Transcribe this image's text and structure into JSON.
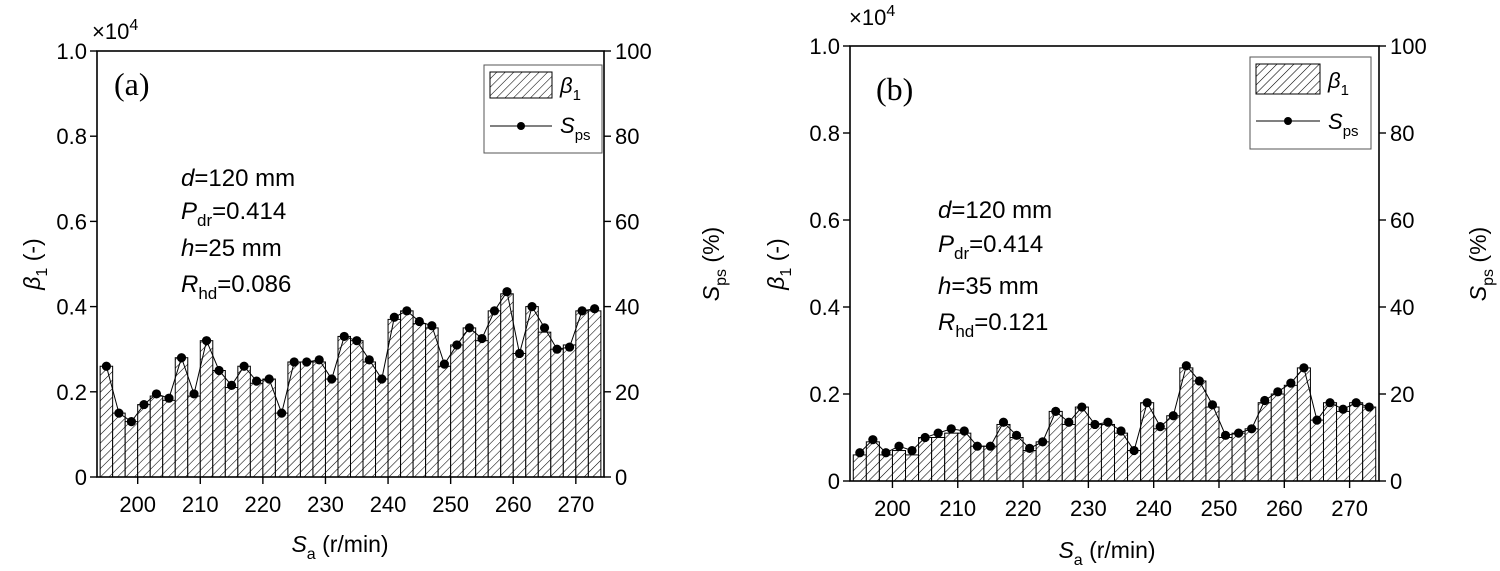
{
  "chart_data": [
    {
      "type": "bar+line",
      "panel_label": "(a)",
      "exponent_label": "×10",
      "exponent_power": "4",
      "ylabel_left": "β1 (-)",
      "ylabel_right": "Sps (%)",
      "xlabel": "Sa (r/min)",
      "x_ticks": [
        "200",
        "210",
        "220",
        "230",
        "240",
        "250",
        "260",
        "270"
      ],
      "y_left_ticks": [
        "0",
        "0.2",
        "0.4",
        "0.6",
        "0.8",
        "1.0"
      ],
      "y_right_ticks": [
        "0",
        "20",
        "40",
        "60",
        "80",
        "100"
      ],
      "ylim_left": [
        0,
        1.0
      ],
      "ylim_right": [
        0,
        100
      ],
      "xlim": [
        193.5,
        274.5
      ],
      "legend": [
        "β1",
        "Sps"
      ],
      "legend_position": "top-right",
      "annotations": [
        "d=120 mm",
        "Pdr=0.414",
        "h=25 mm",
        "Rhd=0.086"
      ],
      "x": [
        195,
        197,
        199,
        201,
        203,
        205,
        207,
        209,
        211,
        213,
        215,
        217,
        219,
        221,
        223,
        225,
        227,
        229,
        231,
        233,
        235,
        237,
        239,
        241,
        243,
        245,
        247,
        249,
        251,
        253,
        255,
        257,
        259,
        261,
        263,
        265,
        267,
        269,
        271,
        273
      ],
      "series": [
        {
          "name": "β1 (×10^4)",
          "values": [
            0.26,
            0.15,
            0.13,
            0.17,
            0.19,
            0.18,
            0.28,
            0.19,
            0.32,
            0.25,
            0.21,
            0.26,
            0.22,
            0.23,
            0.15,
            0.27,
            0.27,
            0.27,
            0.23,
            0.33,
            0.32,
            0.27,
            0.23,
            0.37,
            0.39,
            0.36,
            0.35,
            0.26,
            0.31,
            0.35,
            0.32,
            0.39,
            0.43,
            0.29,
            0.4,
            0.34,
            0.3,
            0.31,
            0.39,
            0.39
          ]
        },
        {
          "name": "Sps (%)",
          "values": [
            26,
            15,
            13,
            17,
            19.5,
            18.5,
            28,
            19.5,
            32,
            25,
            21.5,
            26,
            22.5,
            23,
            15,
            27,
            27,
            27.5,
            23,
            33,
            32,
            27.5,
            23,
            37.5,
            39,
            36.5,
            35.5,
            26.5,
            31,
            35,
            32.5,
            39,
            43.5,
            29,
            40,
            35,
            30,
            30.5,
            39,
            39.5
          ]
        }
      ]
    },
    {
      "type": "bar+line",
      "panel_label": "(b)",
      "exponent_label": "×10",
      "exponent_power": "4",
      "ylabel_left": "β1 (-)",
      "ylabel_right": "Sps (%)",
      "xlabel": "Sa (r/min)",
      "x_ticks": [
        "200",
        "210",
        "220",
        "230",
        "240",
        "250",
        "260",
        "270"
      ],
      "y_left_ticks": [
        "0",
        "0.2",
        "0.4",
        "0.6",
        "0.8",
        "1.0"
      ],
      "y_right_ticks": [
        "0",
        "20",
        "40",
        "60",
        "80",
        "100"
      ],
      "ylim_left": [
        0,
        1.0
      ],
      "ylim_right": [
        0,
        100
      ],
      "xlim": [
        193.5,
        274.5
      ],
      "legend": [
        "β1",
        "Sps"
      ],
      "legend_position": "top-right",
      "annotations": [
        "d=120 mm",
        "Pdr=0.414",
        "h=35 mm",
        "Rhd=0.121"
      ],
      "x": [
        195,
        197,
        199,
        201,
        203,
        205,
        207,
        209,
        211,
        213,
        215,
        217,
        219,
        221,
        223,
        225,
        227,
        229,
        231,
        233,
        235,
        237,
        239,
        241,
        243,
        245,
        247,
        249,
        251,
        253,
        255,
        257,
        259,
        261,
        263,
        265,
        267,
        269,
        271,
        273
      ],
      "series": [
        {
          "name": "β1 (×10^4)",
          "values": [
            0.06,
            0.09,
            0.06,
            0.07,
            0.06,
            0.1,
            0.1,
            0.11,
            0.11,
            0.08,
            0.08,
            0.13,
            0.1,
            0.07,
            0.09,
            0.16,
            0.13,
            0.17,
            0.13,
            0.13,
            0.11,
            0.07,
            0.18,
            0.12,
            0.15,
            0.26,
            0.23,
            0.17,
            0.1,
            0.11,
            0.12,
            0.18,
            0.2,
            0.22,
            0.26,
            0.14,
            0.18,
            0.16,
            0.18,
            0.17
          ]
        },
        {
          "name": "Sps (%)",
          "values": [
            6.5,
            9.5,
            6.5,
            8,
            7,
            10,
            11,
            12,
            11.5,
            8,
            8,
            13.5,
            10.5,
            7.5,
            9,
            16,
            13.5,
            17,
            13,
            13.5,
            11.5,
            7,
            18,
            12.5,
            15,
            26.5,
            23,
            17.5,
            10.5,
            11,
            12,
            18.5,
            20.5,
            22.5,
            26,
            14,
            18,
            16.5,
            18,
            17
          ]
        }
      ]
    }
  ]
}
